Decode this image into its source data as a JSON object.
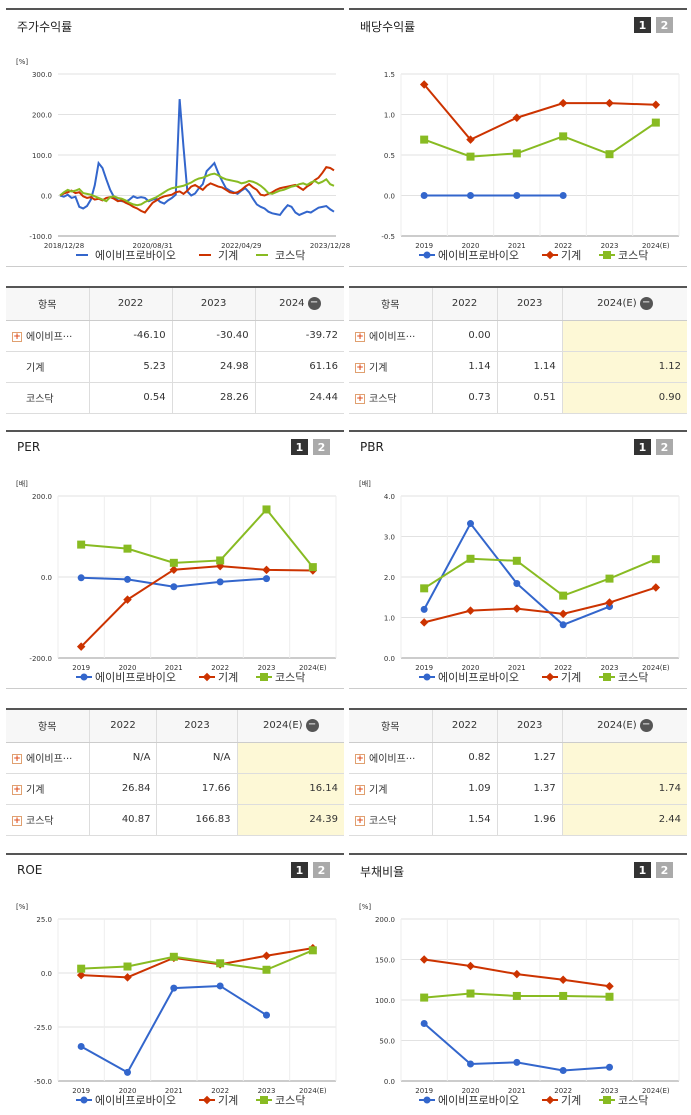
{
  "colors": {
    "s1": "#3366cc",
    "s2": "#cc3300",
    "s3": "#88bb22"
  },
  "tabs": {
    "one": "1",
    "two": "2"
  },
  "chart_data": [
    {
      "id": "price",
      "title": "주가수익률",
      "type": "line",
      "unit": "[%]",
      "ylim": [
        -100,
        300
      ],
      "yticks": [
        "300.0",
        "200.0",
        "100.0",
        "0.0",
        "-100.0"
      ],
      "xticks": [
        "2018/12/28",
        "2020/08/31",
        "2022/04/29",
        "2023/12/28"
      ],
      "series": [
        {
          "name": "에이비프로바이오",
          "values": [
            0,
            -3,
            2,
            -6,
            -3,
            -28,
            -32,
            -26,
            -10,
            25,
            80,
            68,
            40,
            14,
            -4,
            -12,
            -14,
            -16,
            -10,
            -2,
            -6,
            -4,
            -6,
            -14,
            -10,
            -8,
            -16,
            -20,
            -12,
            -6,
            2,
            238,
            120,
            10,
            0,
            5,
            18,
            28,
            60,
            70,
            80,
            56,
            36,
            18,
            12,
            8,
            4,
            12,
            18,
            8,
            -8,
            -22,
            -28,
            -32,
            -40,
            -44,
            -46,
            -48,
            -35,
            -24,
            -28,
            -42,
            -48,
            -44,
            -40,
            -42,
            -36,
            -30,
            -28,
            -26,
            -34,
            -40
          ]
        },
        {
          "name": "기계",
          "values": [
            0,
            5,
            8,
            12,
            6,
            8,
            -2,
            -6,
            -4,
            -10,
            -8,
            -12,
            -6,
            -4,
            -8,
            -14,
            -12,
            -18,
            -22,
            -28,
            -32,
            -38,
            -42,
            -30,
            -18,
            -12,
            -6,
            -2,
            0,
            2,
            8,
            10,
            4,
            12,
            22,
            26,
            20,
            14,
            24,
            30,
            26,
            22,
            20,
            14,
            8,
            6,
            8,
            14,
            22,
            28,
            20,
            14,
            2,
            0,
            4,
            8,
            14,
            18,
            20,
            22,
            24,
            26,
            20,
            14,
            22,
            28,
            38,
            44,
            56,
            70,
            68,
            62
          ]
        },
        {
          "name": "코스닥",
          "values": [
            0,
            8,
            14,
            10,
            12,
            16,
            6,
            4,
            2,
            -2,
            -6,
            -10,
            -14,
            -4,
            -2,
            -6,
            -8,
            -12,
            -18,
            -22,
            -24,
            -22,
            -16,
            -12,
            -8,
            -4,
            2,
            8,
            14,
            18,
            20,
            22,
            24,
            28,
            32,
            38,
            42,
            44,
            48,
            52,
            54,
            50,
            44,
            40,
            38,
            36,
            34,
            30,
            32,
            36,
            34,
            30,
            24,
            16,
            6,
            4,
            8,
            12,
            14,
            18,
            22,
            24,
            28,
            30,
            26,
            32,
            36,
            30,
            34,
            40,
            28,
            24
          ]
        }
      ]
    },
    {
      "id": "div",
      "title": "배당수익률",
      "type": "line",
      "ylim": [
        -0.5,
        1.5
      ],
      "yticks": [
        "1.5",
        "1.0",
        "0.5",
        "0.0",
        "-0.5"
      ],
      "categories": [
        "2019",
        "2020",
        "2021",
        "2022",
        "2023",
        "2024(E)"
      ],
      "series": [
        {
          "name": "에이비프로바이오",
          "values": [
            0,
            0,
            0,
            0,
            null,
            null
          ]
        },
        {
          "name": "기계",
          "values": [
            1.37,
            0.69,
            0.96,
            1.14,
            1.14,
            1.12
          ]
        },
        {
          "name": "코스닥",
          "values": [
            0.69,
            0.48,
            0.52,
            0.73,
            0.51,
            0.9
          ]
        }
      ]
    },
    {
      "id": "per",
      "title": "PER",
      "type": "line",
      "unit": "[배]",
      "ylim": [
        -200,
        200
      ],
      "yticks": [
        "200.0",
        "0.0",
        "-200.0"
      ],
      "categories": [
        "2019",
        "2020",
        "2021",
        "2022",
        "2023",
        "2024(E)"
      ],
      "series": [
        {
          "name": "에이비프로바이오",
          "values": [
            -2,
            -6,
            -24,
            -12,
            -4,
            null
          ]
        },
        {
          "name": "기계",
          "values": [
            -172,
            -56,
            18,
            26.84,
            17.66,
            16.14
          ]
        },
        {
          "name": "코스닥",
          "values": [
            80,
            70,
            35,
            40.87,
            166.83,
            24.39
          ]
        }
      ]
    },
    {
      "id": "pbr",
      "title": "PBR",
      "type": "line",
      "unit": "[배]",
      "ylim": [
        0,
        4
      ],
      "yticks": [
        "4.0",
        "3.0",
        "2.0",
        "1.0",
        "0.0"
      ],
      "categories": [
        "2019",
        "2020",
        "2021",
        "2022",
        "2023",
        "2024(E)"
      ],
      "series": [
        {
          "name": "에이비프로바이오",
          "values": [
            1.2,
            3.32,
            1.84,
            0.82,
            1.27,
            null
          ]
        },
        {
          "name": "기계",
          "values": [
            0.88,
            1.17,
            1.22,
            1.09,
            1.37,
            1.74
          ]
        },
        {
          "name": "코스닥",
          "values": [
            1.72,
            2.45,
            2.4,
            1.54,
            1.96,
            2.44
          ]
        }
      ]
    },
    {
      "id": "roe",
      "title": "ROE",
      "type": "line",
      "unit": "[%]",
      "ylim": [
        -50,
        25
      ],
      "yticks": [
        "25.0",
        "0.0",
        "-25.0",
        "-50.0"
      ],
      "categories": [
        "2019",
        "2020",
        "2021",
        "2022",
        "2023",
        "2024(E)"
      ],
      "series": [
        {
          "name": "에이비프로바이오",
          "values": [
            -34,
            -46,
            -7,
            -6,
            -19.5,
            null
          ]
        },
        {
          "name": "기계",
          "values": [
            -1,
            -2,
            7,
            4,
            8,
            11.5
          ]
        },
        {
          "name": "코스닥",
          "values": [
            2,
            3,
            7.5,
            4.5,
            1.5,
            10.5
          ]
        }
      ]
    },
    {
      "id": "debt",
      "title": "부채비율",
      "type": "line",
      "unit": "[%]",
      "ylim": [
        0,
        200
      ],
      "yticks": [
        "200.0",
        "150.0",
        "100.0",
        "50.0",
        "0.0"
      ],
      "categories": [
        "2019",
        "2020",
        "2021",
        "2022",
        "2023",
        "2024(E)"
      ],
      "series": [
        {
          "name": "에이비프로바이오",
          "values": [
            71,
            21,
            23,
            13,
            17,
            null
          ]
        },
        {
          "name": "기계",
          "values": [
            150,
            142,
            132,
            125,
            117,
            null
          ]
        },
        {
          "name": "코스닥",
          "values": [
            103,
            108,
            105,
            105,
            104,
            null
          ]
        }
      ]
    }
  ],
  "tables": {
    "price": {
      "head": [
        "항목",
        "2022",
        "2023",
        "2024"
      ],
      "rows": [
        {
          "name": "에이비프···",
          "vals": [
            "-46.10",
            "-30.40",
            "-39.72"
          ]
        },
        {
          "name": "기계",
          "vals": [
            "5.23",
            "24.98",
            "61.16"
          ]
        },
        {
          "name": "코스닥",
          "vals": [
            "0.54",
            "28.26",
            "24.44"
          ]
        }
      ]
    },
    "div": {
      "head": [
        "항목",
        "2022",
        "2023",
        "2024(E)"
      ],
      "rows": [
        {
          "name": "에이비프···",
          "vals": [
            "0.00",
            "",
            ""
          ]
        },
        {
          "name": "기계",
          "vals": [
            "1.14",
            "1.14",
            "1.12"
          ]
        },
        {
          "name": "코스닥",
          "vals": [
            "0.73",
            "0.51",
            "0.90"
          ]
        }
      ]
    },
    "per": {
      "head": [
        "항목",
        "2022",
        "2023",
        "2024(E)"
      ],
      "rows": [
        {
          "name": "에이비프···",
          "vals": [
            "N/A",
            "N/A",
            ""
          ]
        },
        {
          "name": "기계",
          "vals": [
            "26.84",
            "17.66",
            "16.14"
          ]
        },
        {
          "name": "코스닥",
          "vals": [
            "40.87",
            "166.83",
            "24.39"
          ]
        }
      ]
    },
    "pbr": {
      "head": [
        "항목",
        "2022",
        "2023",
        "2024(E)"
      ],
      "rows": [
        {
          "name": "에이비프···",
          "vals": [
            "0.82",
            "1.27",
            ""
          ]
        },
        {
          "name": "기계",
          "vals": [
            "1.09",
            "1.37",
            "1.74"
          ]
        },
        {
          "name": "코스닥",
          "vals": [
            "1.54",
            "1.96",
            "2.44"
          ]
        }
      ]
    }
  },
  "ui": {
    "plus": "+",
    "minus": "−"
  }
}
